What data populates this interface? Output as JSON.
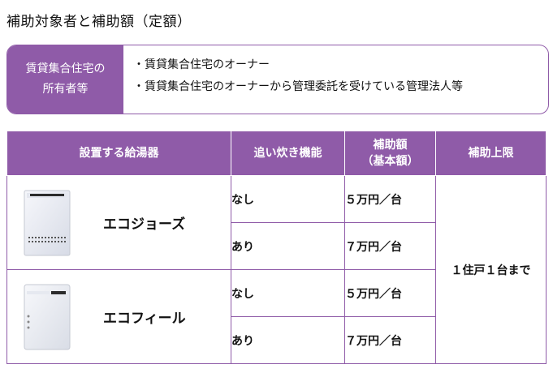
{
  "page_title": "補助対象者と補助額（定額）",
  "eligibility": {
    "label_line1": "賃貸集合住宅の",
    "label_line2": "所有者等",
    "items": [
      "賃貸集合住宅のオーナー",
      "賃貸集合住宅のオーナーから管理委託を受けている管理法人等"
    ]
  },
  "table": {
    "headers": {
      "heater": "設置する給湯器",
      "reheat": "追い炊き機能",
      "amount_line1": "補助額",
      "amount_line2": "（基本額）",
      "limit": "補助上限"
    },
    "rows": [
      {
        "heater": "エコジョーズ",
        "icon": "water-heater-icon",
        "reheat": "なし",
        "amount": "５万円／台"
      },
      {
        "heater": "エコジョーズ",
        "icon": "water-heater-icon",
        "reheat": "あり",
        "amount": "７万円／台"
      },
      {
        "heater": "エコフィール",
        "icon": "oil-water-heater-icon",
        "reheat": "なし",
        "amount": "５万円／台"
      },
      {
        "heater": "エコフィール",
        "icon": "oil-water-heater-icon",
        "reheat": "あり",
        "amount": "７万円／台"
      }
    ],
    "limit": "１住戸１台まで"
  },
  "colors": {
    "accent": "#8f5ba8",
    "header_text": "#ffffff"
  }
}
